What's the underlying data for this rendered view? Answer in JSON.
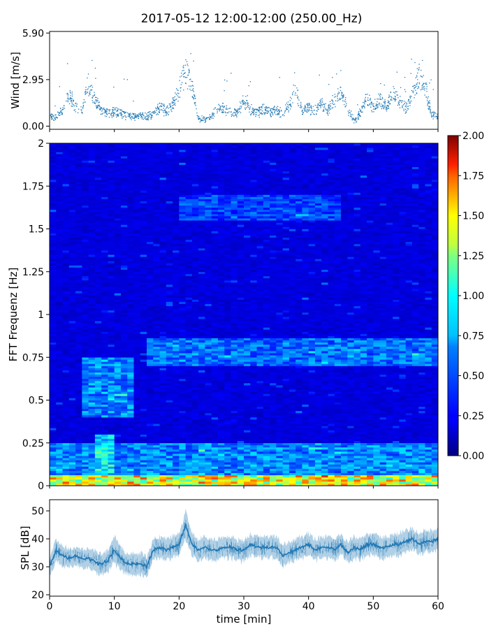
{
  "chart_data": [
    {
      "type": "scatter",
      "panel": "wind",
      "title": "2017-05-12 12:00-12:00 (250.00_Hz)",
      "xlabel": "",
      "ylabel": "Wind [m/s]",
      "xlim": [
        0,
        60
      ],
      "ylim": [
        -0.2,
        6.0
      ],
      "yticks": [
        0.0,
        2.95,
        5.9
      ],
      "ytick_labels": [
        "0.00",
        "2.95",
        "5.90"
      ],
      "color": "#1f77b4",
      "x": [
        0,
        1,
        2,
        3,
        4,
        5,
        6,
        7,
        8,
        9,
        10,
        11,
        12,
        13,
        14,
        15,
        16,
        17,
        18,
        19,
        20,
        21,
        22,
        23,
        24,
        25,
        26,
        27,
        28,
        29,
        30,
        31,
        32,
        33,
        34,
        35,
        36,
        37,
        38,
        39,
        40,
        41,
        42,
        43,
        44,
        45,
        46,
        47,
        48,
        49,
        50,
        51,
        52,
        53,
        54,
        55,
        56,
        57,
        58,
        59,
        60
      ],
      "y": [
        0.6,
        0.6,
        0.9,
        2.0,
        1.2,
        1.0,
        2.7,
        1.6,
        1.0,
        0.8,
        0.9,
        0.8,
        0.7,
        0.6,
        0.7,
        0.6,
        0.8,
        1.2,
        0.9,
        1.3,
        2.3,
        3.5,
        2.5,
        0.5,
        0.4,
        0.6,
        1.2,
        1.1,
        0.9,
        0.8,
        1.6,
        1.0,
        0.9,
        1.1,
        0.9,
        1.0,
        0.8,
        1.3,
        2.3,
        1.0,
        1.2,
        0.9,
        1.4,
        1.0,
        1.6,
        2.0,
        1.1,
        0.4,
        0.8,
        1.8,
        1.2,
        1.7,
        1.1,
        2.2,
        1.6,
        1.2,
        2.0,
        3.2,
        2.5,
        0.7,
        0.6
      ]
    },
    {
      "type": "heatmap",
      "panel": "spectrogram",
      "xlabel": "",
      "ylabel": "FFT Frequenz [Hz]",
      "xlim": [
        0,
        60
      ],
      "ylim": [
        0,
        2
      ],
      "yticks": [
        0,
        0.25,
        0.5,
        0.75,
        1,
        1.25,
        1.5,
        1.75,
        2
      ],
      "ytick_labels": [
        "0",
        "0.25",
        "0.5",
        "0.75",
        "1",
        "1.25",
        "1.5",
        "1.75",
        "2"
      ],
      "colorbar": {
        "colormap": "jet",
        "vmin": 0.0,
        "vmax": 2.0,
        "ticks": [
          0.0,
          0.25,
          0.5,
          0.75,
          1.0,
          1.25,
          1.5,
          1.75,
          2.0
        ],
        "tick_labels": [
          "0.00",
          "0.25",
          "0.50",
          "0.75",
          "1.00",
          "1.25",
          "1.50",
          "1.75",
          "2.00"
        ]
      },
      "features": [
        {
          "freq": [
            0.0,
            0.06
          ],
          "time": [
            0,
            60
          ],
          "level": 1.4
        },
        {
          "freq": [
            0.06,
            0.25
          ],
          "time": [
            0,
            60
          ],
          "level": 0.6
        },
        {
          "freq": [
            0.08,
            0.3
          ],
          "time": [
            7,
            10
          ],
          "level": 0.85
        },
        {
          "freq": [
            0.4,
            0.75
          ],
          "time": [
            5,
            13
          ],
          "level": 0.6
        },
        {
          "freq": [
            0.7,
            0.86
          ],
          "time": [
            15,
            60
          ],
          "level": 0.55
        },
        {
          "freq": [
            1.55,
            1.7
          ],
          "time": [
            20,
            45
          ],
          "level": 0.45
        },
        {
          "freq": [
            0.0,
            2.0
          ],
          "time": [
            0,
            60
          ],
          "level": 0.2
        }
      ]
    },
    {
      "type": "line",
      "panel": "spl",
      "xlabel": "time [min]",
      "ylabel": "SPL [dB]",
      "xlim": [
        0,
        60
      ],
      "ylim": [
        19.5,
        54
      ],
      "xticks": [
        0,
        10,
        20,
        30,
        40,
        50,
        60
      ],
      "xtick_labels": [
        "0",
        "10",
        "20",
        "30",
        "40",
        "50",
        "60"
      ],
      "yticks": [
        20,
        30,
        40,
        50
      ],
      "ytick_labels": [
        "20",
        "30",
        "40",
        "50"
      ],
      "color": "#1f77b4",
      "x": [
        0,
        1,
        2,
        3,
        4,
        5,
        6,
        7,
        8,
        9,
        10,
        11,
        12,
        13,
        14,
        15,
        16,
        17,
        18,
        19,
        20,
        21,
        22,
        23,
        24,
        25,
        26,
        27,
        28,
        29,
        30,
        31,
        32,
        33,
        34,
        35,
        36,
        37,
        38,
        39,
        40,
        41,
        42,
        43,
        44,
        45,
        46,
        47,
        48,
        49,
        50,
        51,
        52,
        53,
        54,
        55,
        56,
        57,
        58,
        59,
        60
      ],
      "y": [
        30,
        36,
        34,
        33,
        34,
        33,
        33,
        32,
        31,
        32,
        36,
        33,
        31,
        31,
        31,
        30,
        36,
        37,
        36,
        37,
        38,
        45,
        38,
        36,
        37,
        36,
        36,
        37,
        37,
        36,
        36,
        38,
        37,
        37,
        37,
        37,
        34,
        35,
        36,
        37,
        38,
        36,
        37,
        37,
        36,
        38,
        35,
        37,
        36,
        38,
        38,
        37,
        37,
        38,
        38,
        39,
        40,
        38,
        39,
        39,
        40
      ],
      "band": [
        3.5,
        4,
        4,
        3.5,
        3.5,
        3.5,
        3.5,
        4,
        4,
        4,
        5,
        4,
        4,
        4,
        4,
        4,
        4,
        4,
        4,
        4,
        4,
        5,
        4,
        4,
        4,
        4,
        4,
        4,
        4,
        4,
        4,
        4,
        4,
        4,
        4,
        4,
        4,
        4,
        4,
        4,
        4,
        4,
        4,
        4,
        4,
        4,
        4,
        4,
        4,
        4,
        4,
        4,
        4,
        4,
        4,
        4,
        4,
        4,
        4,
        4,
        4
      ]
    }
  ]
}
